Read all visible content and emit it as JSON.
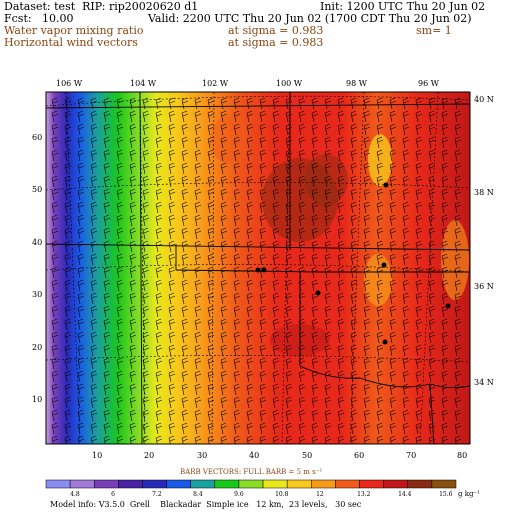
{
  "header": {
    "dataset": "Dataset: test  RIP: rip20020620 d1",
    "init": "Init: 1200 UTC Thu 20 Jun 02",
    "fcst": "Fcst:   10.00",
    "valid": "Valid: 2200 UTC Thu 20 Jun 02 (1700 CDT Thu 20 Jun 02)",
    "field1": "Water vapor mixing ratio",
    "field1_level": "at sigma = 0.983",
    "field1_sm": "sm= 1",
    "field2": "Horizontal wind vectors",
    "field2_level": "at sigma = 0.983"
  },
  "lon_labels": [
    "106 W",
    "104 W",
    "102 W",
    "100 W",
    "98 W",
    "96 W"
  ],
  "lat_labels": [
    "40 N",
    "38 N",
    "36 N",
    "34 N"
  ],
  "y_ticks": [
    "60",
    "50",
    "40",
    "30",
    "20",
    "10"
  ],
  "x_ticks": [
    "10",
    "20",
    "30",
    "40",
    "50",
    "60",
    "70",
    "80"
  ],
  "barb_caption": "BARB VECTORS:  FULL BARB = 5 m s⁻¹",
  "colorbar": {
    "values": [
      "4.8",
      "6",
      "7.2",
      "8.4",
      "9.6",
      "10.8",
      "12",
      "13.2",
      "14.4",
      "15.6"
    ],
    "units": "g kg⁻¹",
    "colors": [
      "#8a8cf0",
      "#a07ad8",
      "#7a3fb8",
      "#4a22a8",
      "#2a2ab8",
      "#1a5ae8",
      "#1aa0a0",
      "#1ac81a",
      "#8adc28",
      "#e8e81a",
      "#f8c81a",
      "#f89a1a",
      "#f05a1a",
      "#e8281a",
      "#c01818",
      "#8a2a10",
      "#8a5010"
    ]
  },
  "footer": "Model info: V3.5.0  Grell    Blackadar  Simple ice   12 km,  23 levels,   30 sec"
}
